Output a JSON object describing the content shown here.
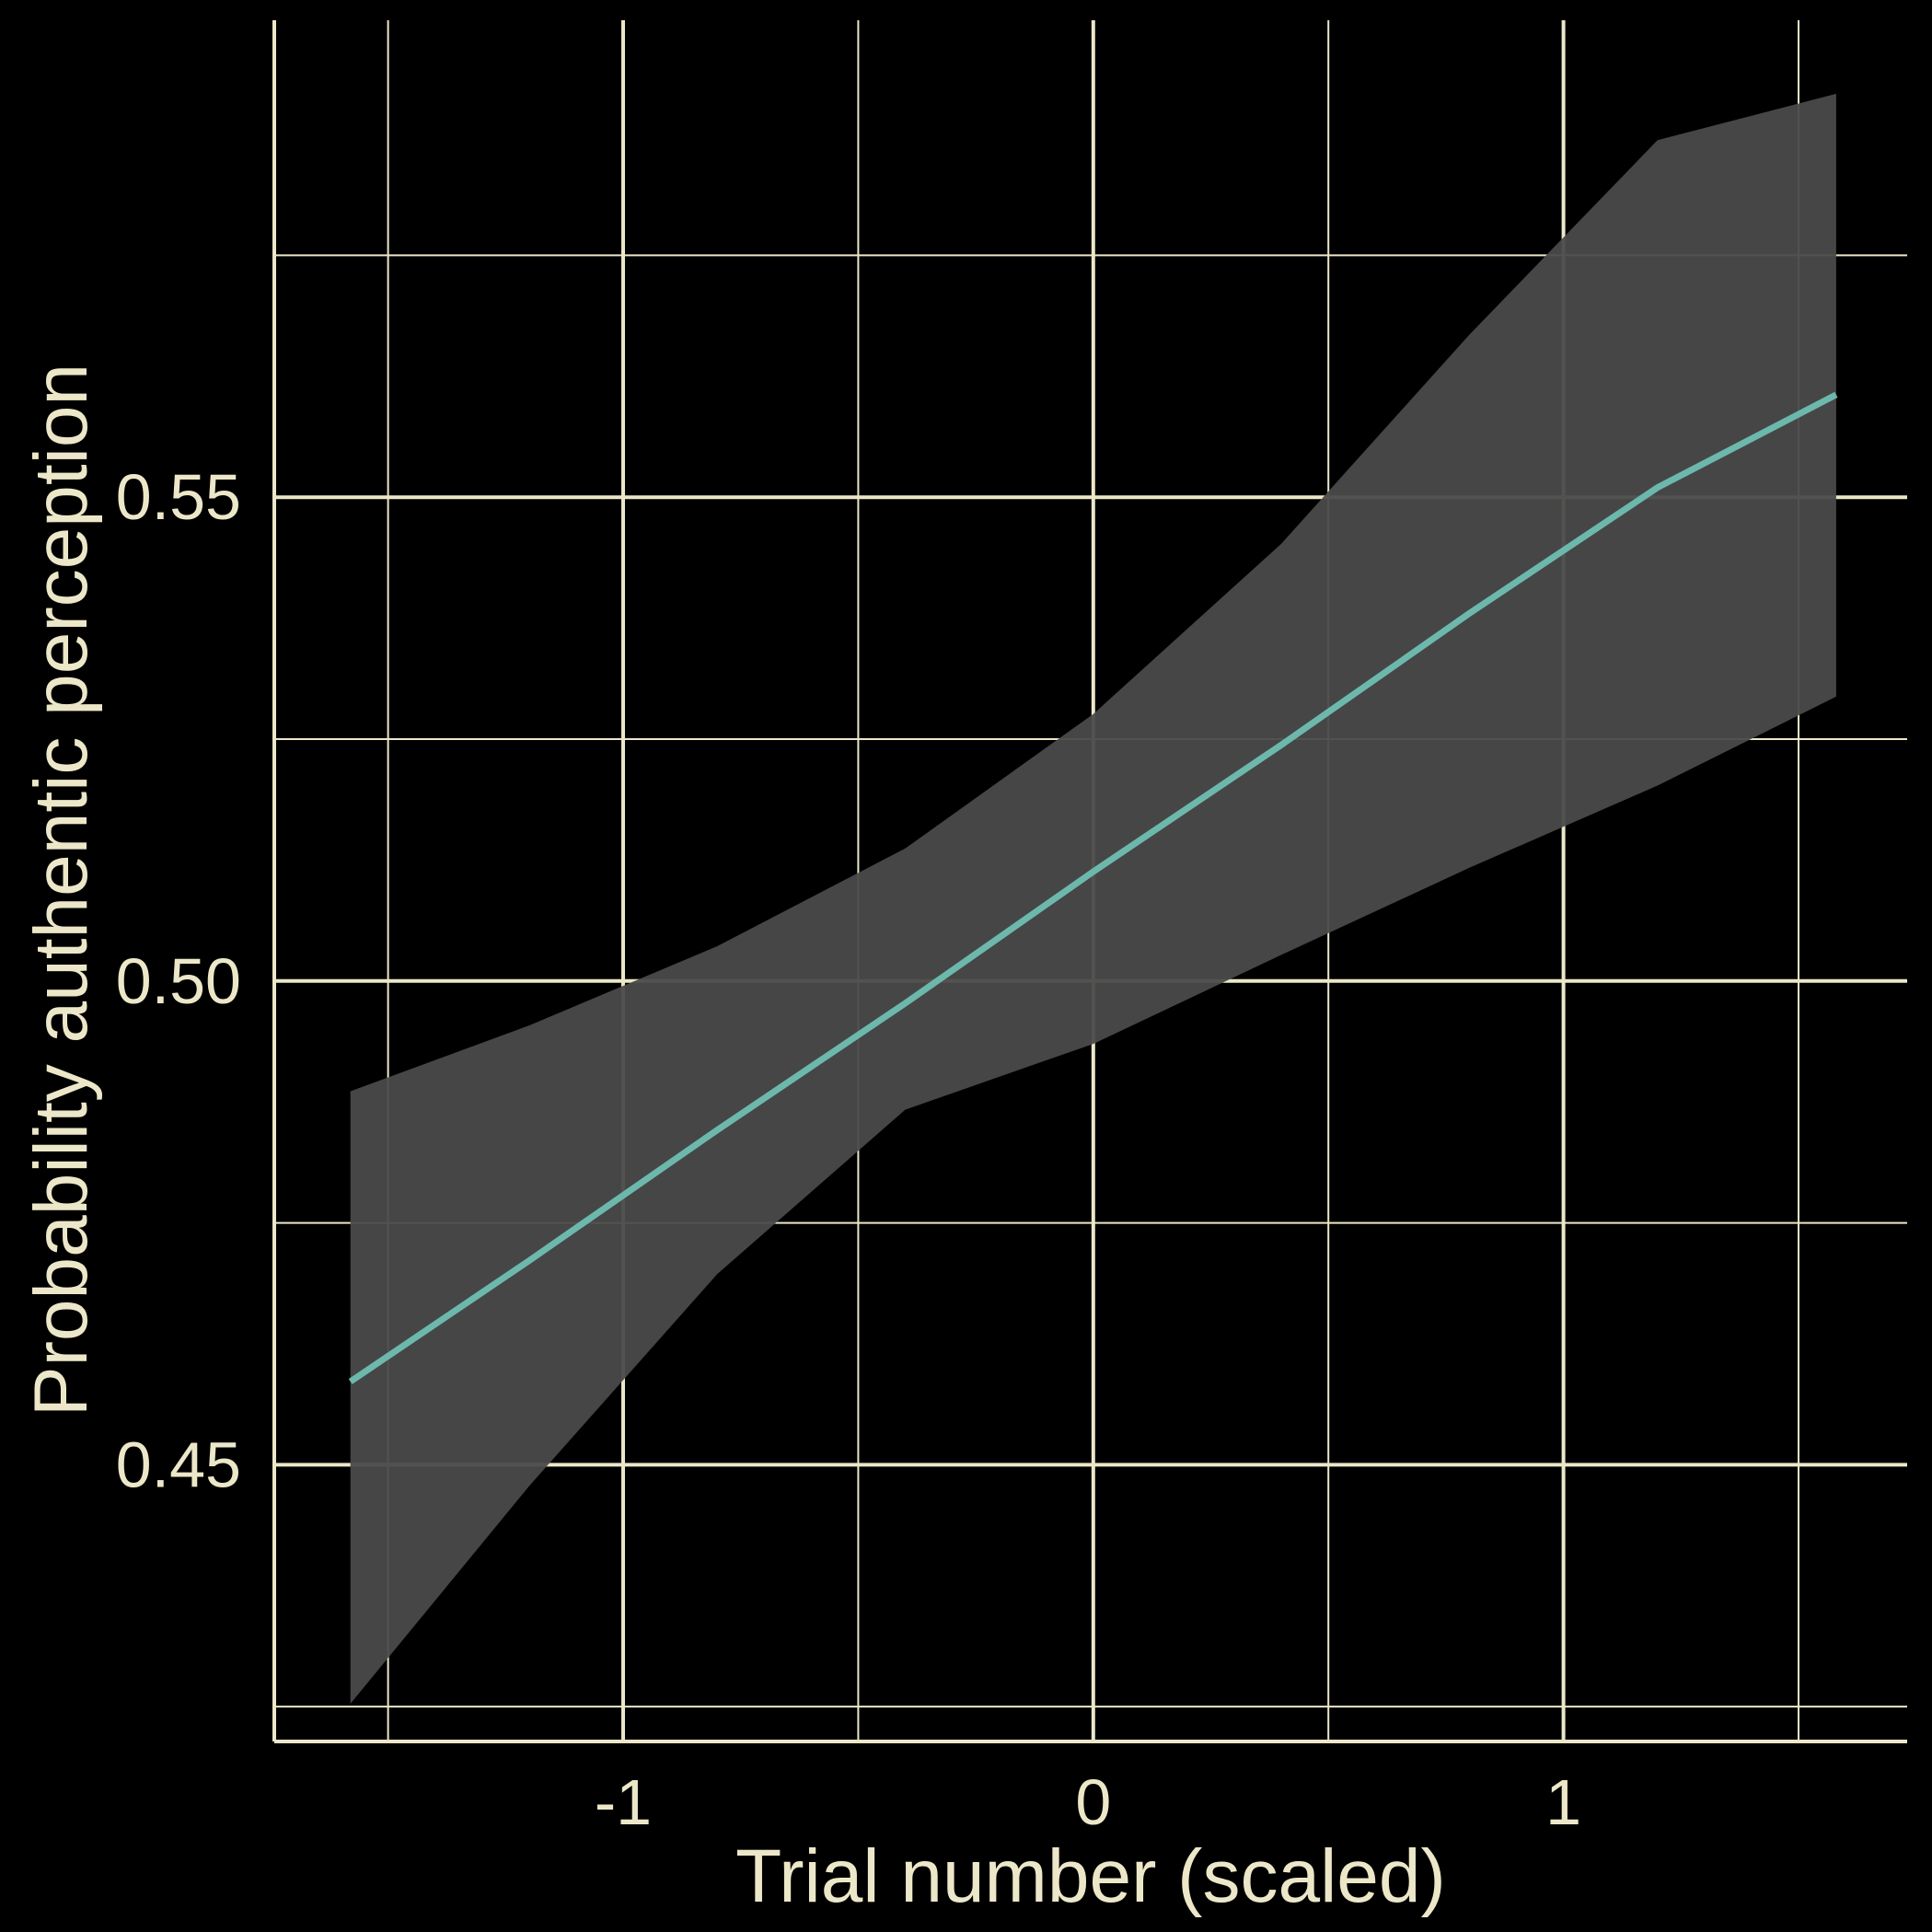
{
  "chart_data": {
    "type": "line",
    "title": "",
    "xlabel": "Trial number (scaled)",
    "ylabel": "Probability authentic perception",
    "xlim": [
      -1.742,
      1.731
    ],
    "ylim": [
      0.4214,
      0.5993
    ],
    "x_ticks": [
      -1,
      0,
      1
    ],
    "x_tick_labels": [
      "-1",
      "0",
      "1"
    ],
    "y_ticks": [
      0.45,
      0.5,
      0.55
    ],
    "y_tick_labels": [
      "0.45",
      "0.50",
      "0.55"
    ],
    "grid": true,
    "legend": "none",
    "colors": {
      "background": "#000000",
      "grid": "#ECE7C8",
      "text": "#ECE7C8",
      "line": "#6CB8AC",
      "ribbon": "#4A4A4A"
    },
    "series": [
      {
        "x": [
          -1.58,
          -1.2,
          -0.8,
          -0.4,
          0,
          0.4,
          0.8,
          1.2,
          1.58
        ],
        "y": [
          0.4586,
          0.4711,
          0.4846,
          0.4977,
          0.5113,
          0.5244,
          0.538,
          0.551,
          0.5606
        ],
        "lower": [
          0.4253,
          0.4478,
          0.4697,
          0.4867,
          0.4935,
          0.5027,
          0.5117,
          0.5202,
          0.5294
        ],
        "upper": [
          0.4886,
          0.4954,
          0.5036,
          0.5137,
          0.5276,
          0.5452,
          0.5668,
          0.5869,
          0.5917
        ]
      }
    ]
  }
}
